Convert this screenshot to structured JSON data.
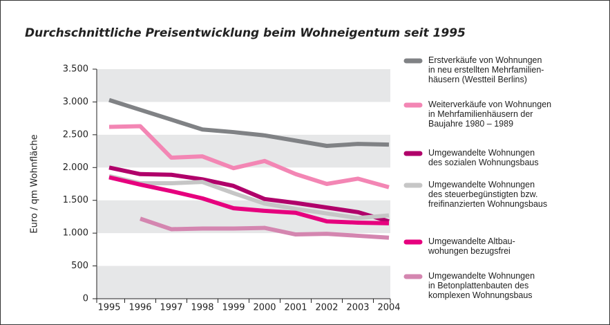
{
  "chart_data": {
    "type": "line",
    "title": "Durchschnittliche Preisentwicklung beim Wohneigentum seit 1995",
    "y_label": "Euro / qm Wohnfläche",
    "categories": [
      "1995",
      "1996",
      "1997",
      "1998",
      "1999",
      "2000",
      "2001",
      "2002",
      "2003",
      "2004"
    ],
    "series": [
      {
        "name": "Erstverkäufe von Wohnungen\nin neu erstellten Mehrfamilien-\nhäusern (Westteil Berlins)",
        "color": "#808285",
        "values": [
          3030,
          2880,
          2730,
          2580,
          2540,
          2490,
          2410,
          2330,
          2360,
          2350
        ]
      },
      {
        "name": "Weiterverkäufe von Wohnungen\nin Mehrfamilienhäusern der\nBaujahre 1980 – 1989",
        "color": "#f386b4",
        "values": [
          2620,
          2630,
          2150,
          2170,
          1990,
          2100,
          1900,
          1750,
          1830,
          1700
        ]
      },
      {
        "name": "Umgewandelte Wohnungen\ndes sozialen Wohnungsbaus",
        "color": "#b0006a",
        "values": [
          2000,
          1900,
          1890,
          1820,
          1720,
          1520,
          1460,
          1390,
          1320,
          1180
        ]
      },
      {
        "name": "Umgewandelte Wohnungen\ndes steuerbegünstigten bzw.\nfreifinanzierten Wohnungsbaus",
        "color": "#c6c6c6",
        "values": [
          1870,
          1760,
          1760,
          1780,
          1610,
          1450,
          1370,
          1300,
          1230,
          1270
        ]
      },
      {
        "name": "Umgewandelte Altbau-\nwohungen bezugsfrei",
        "color": "#e6007e",
        "values": [
          1850,
          1740,
          1640,
          1530,
          1380,
          1340,
          1310,
          1180,
          1160,
          1150
        ]
      },
      {
        "name": "Umgewandelte Wohnungen\nin Betonplattenbauten des\nkomplexen Wohnungsbaus",
        "color": "#d486b0",
        "values": [
          null,
          1220,
          1060,
          1070,
          1070,
          1080,
          980,
          990,
          960,
          930
        ]
      }
    ],
    "ylim": [
      0,
      3500
    ],
    "yticks": [
      0,
      500,
      {
        "value": 1000,
        "label": "1.000"
      },
      {
        "value": 1500,
        "label": "1.500"
      },
      {
        "value": 2000,
        "label": "2.000"
      },
      {
        "value": 2500,
        "label": "2.500"
      },
      {
        "value": 3000,
        "label": "3.000"
      },
      {
        "value": 3500,
        "label": "3.500"
      }
    ],
    "bands": true
  }
}
